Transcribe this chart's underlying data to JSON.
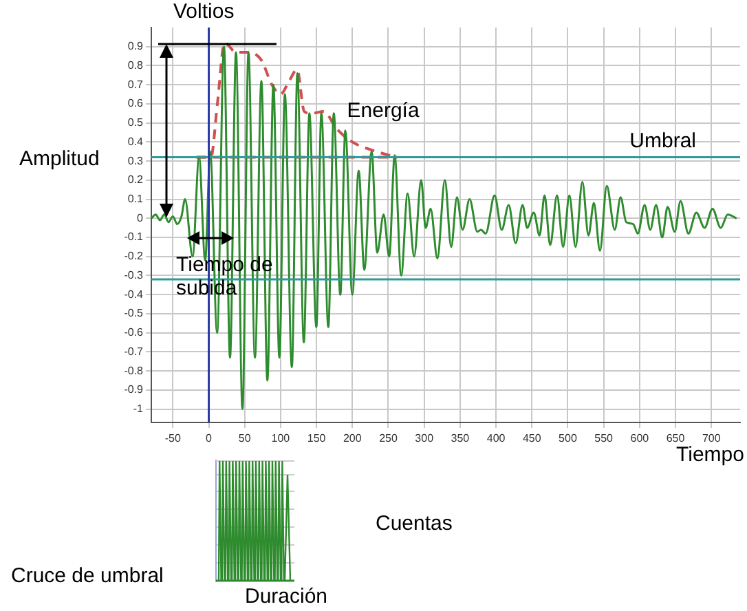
{
  "chart_data": {
    "type": "line",
    "xlabel": "Tiempo",
    "ylabel": "Amplitud",
    "xlim": [
      -80,
      740
    ],
    "xticks": [
      -50,
      0,
      50,
      100,
      150,
      200,
      250,
      300,
      350,
      400,
      450,
      500,
      550,
      600,
      650,
      700
    ],
    "ylim": [
      -1.07,
      1.0
    ],
    "yticks": [
      -1,
      -0.9,
      -0.8,
      -0.7,
      -0.6,
      -0.5,
      -0.4,
      -0.3,
      -0.2,
      -0.1,
      0,
      0.1,
      0.2,
      0.3,
      0.4,
      0.5,
      0.6,
      0.7,
      0.8,
      0.9
    ],
    "grid": true,
    "legend": false,
    "marker": "none",
    "series": [
      {
        "color": "#2e8b2e",
        "line_style": "solid",
        "x": [
          -80,
          -74,
          -68,
          -62,
          -56,
          -50,
          -44,
          -38,
          -33,
          -22.5,
          -13.5,
          -5,
          2,
          11.6,
          21.2,
          29.6,
          37.9,
          46.9,
          55.3,
          64.3,
          73.3,
          81.6,
          90,
          98.3,
          106,
          115.7,
          123.4,
          132.4,
          140.1,
          149.8,
          156.8,
          166.5,
          174.1,
          183.2,
          190.2,
          199.9,
          208.8,
          216.6,
          226.8,
          234.6,
          243.5,
          251.3,
          258.9,
          268,
          276.9,
          286,
          295.8,
          302,
          309,
          318.4,
          328.8,
          337.6,
          345.6,
          353.5,
          363.2,
          374,
          379,
          385.7,
          398,
          408,
          417.7,
          427.4,
          437,
          443.4,
          452.6,
          460.7,
          467.6,
          475.5,
          485,
          493.5,
          502.2,
          510.8,
          520.3,
          528.8,
          536.3,
          544.8,
          554.3,
          565.4,
          573.5,
          581.4,
          591,
          597.5,
          607,
          614.8,
          623,
          631.5,
          639,
          648.9,
          657,
          668,
          679,
          690.5,
          701.5,
          713,
          722.7,
          735
        ],
        "values": [
          0,
          0.02,
          -0.01,
          0.02,
          -0.02,
          0.01,
          -0.03,
          0.01,
          0.1,
          -0.2,
          0.32,
          -0.22,
          0.35,
          -0.6,
          0.9,
          -0.73,
          0.87,
          -1.0,
          0.87,
          -0.73,
          0.72,
          -0.85,
          0.7,
          -0.73,
          0.65,
          -0.78,
          0.76,
          -0.65,
          0.55,
          -0.57,
          0.55,
          -0.57,
          0.55,
          -0.4,
          0.46,
          -0.4,
          0.25,
          -0.27,
          0.35,
          -0.18,
          0.02,
          -0.2,
          0.33,
          -0.3,
          0.13,
          -0.2,
          0.2,
          -0.05,
          0.05,
          -0.21,
          0.2,
          -0.15,
          0.11,
          -0.06,
          0.1,
          -0.07,
          -0.06,
          -0.08,
          0.12,
          -0.06,
          0.07,
          -0.13,
          0.07,
          -0.05,
          0.03,
          -0.09,
          0.12,
          -0.14,
          0.12,
          -0.15,
          0.12,
          -0.15,
          0.19,
          -0.09,
          0.08,
          -0.17,
          0.17,
          -0.06,
          0.11,
          -0.02,
          -0.03,
          -0.08,
          0.07,
          -0.06,
          0.07,
          -0.1,
          0.06,
          -0.07,
          0.09,
          -0.08,
          0.03,
          -0.05,
          0.05,
          -0.05,
          0.02,
          0
        ]
      },
      {
        "name": "Energía",
        "color": "#d05050",
        "line_style": "dashed",
        "x": [
          -17,
          3,
          12,
          22,
          38,
          55,
          73,
          88,
          100,
          112,
          123,
          133,
          143,
          160,
          178,
          200,
          225,
          262
        ],
        "values": [
          0.32,
          0.32,
          0.6,
          0.92,
          0.87,
          0.87,
          0.83,
          0.7,
          0.65,
          0.72,
          0.78,
          0.56,
          0.55,
          0.56,
          0.47,
          0.4,
          0.36,
          0.32
        ]
      },
      {
        "color": "#d05050",
        "line_style": "dashed",
        "x": [
          -17,
          262
        ],
        "values": [
          0.32,
          0.32
        ]
      }
    ],
    "ref_lines": [
      {
        "axis": "y",
        "value": 0.32,
        "label": "Umbral",
        "color": "#2f9a9a"
      },
      {
        "axis": "y",
        "value": -0.32,
        "color": "#2f9a9a"
      },
      {
        "axis": "x",
        "value": 0,
        "color": "#2a3aa8"
      }
    ],
    "annotations": [
      "Voltios",
      "Tiempo de subida",
      "Cruce de umbral",
      "Cuentas",
      "Duración"
    ]
  }
}
